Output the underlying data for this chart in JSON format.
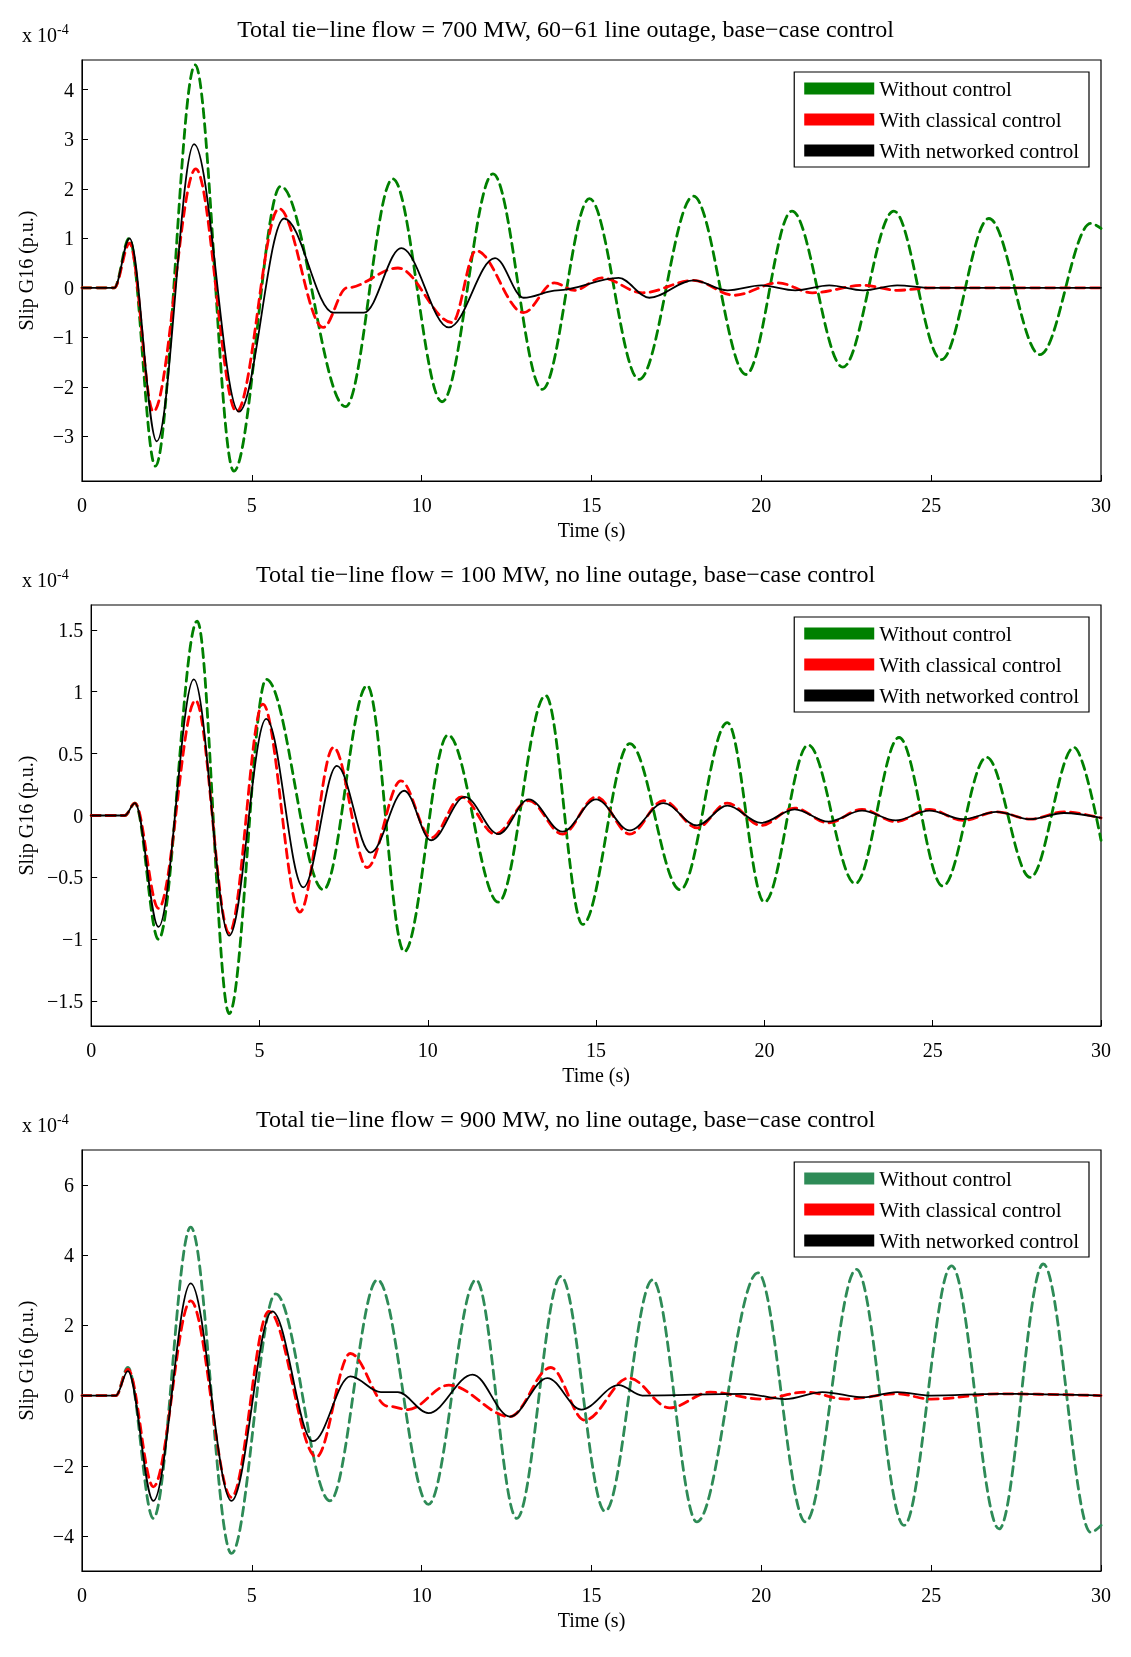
{
  "chart_data": [
    {
      "type": "line",
      "title": "Total tie−line flow = 700 MW, 60−61 line outage, base−case control",
      "xlabel": "Time (s)",
      "ylabel": "Slip G16 (p.u.)",
      "annotations": [
        "x 10$^{-4}$"
      ],
      "xlim": [
        0,
        30
      ],
      "xticks": [
        0,
        5,
        10,
        15,
        20,
        25,
        30
      ],
      "ylim": [
        -3.9,
        4.6
      ],
      "yticks": [
        -3,
        -2,
        -1,
        0,
        1,
        2,
        3,
        4
      ],
      "legend": "top right",
      "series": [
        {
          "name": "Without control",
          "color": "#008000",
          "line_style": "dashed",
          "x": [
            0,
            0.95,
            1.39,
            2.16,
            3.33,
            4.47,
            5.85,
            7.76,
            9.15,
            10.6,
            12.1,
            13.55,
            14.94,
            16.4,
            18.0,
            19.55,
            20.9,
            22.4,
            23.9,
            25.3,
            26.7,
            28.2,
            29.7,
            30
          ],
          "values": [
            0,
            0,
            1,
            -3.6,
            4.5,
            -3.7,
            2.05,
            -2.4,
            2.2,
            -2.3,
            2.3,
            -2.05,
            1.8,
            -1.85,
            1.85,
            -1.75,
            1.55,
            -1.6,
            1.55,
            -1.45,
            1.4,
            -1.35,
            1.3,
            1.2
          ]
        },
        {
          "name": "With classical control",
          "color": "#ff0000",
          "line_style": "dashed",
          "x": [
            0,
            0.95,
            1.4,
            2.1,
            3.35,
            4.55,
            5.8,
            7.1,
            7.8,
            9.3,
            10.9,
            11.6,
            13.0,
            13.9,
            14.5,
            15.3,
            16.5,
            18.0,
            19.2,
            20.5,
            21.5,
            23.0,
            24.0,
            25.0,
            30
          ],
          "values": [
            0,
            0,
            0.9,
            -2.5,
            2.4,
            -2.5,
            1.6,
            -0.8,
            0,
            0.4,
            -0.7,
            0.75,
            -0.5,
            0.1,
            -0.05,
            0.2,
            -0.1,
            0.15,
            -0.15,
            0.1,
            -0.1,
            0.05,
            -0.05,
            0,
            0
          ]
        },
        {
          "name": "With networked control",
          "color": "#000000",
          "line_style": "solid",
          "x": [
            0,
            0.95,
            1.4,
            2.2,
            3.3,
            4.62,
            5.95,
            7.4,
            8.3,
            9.4,
            10.8,
            12.16,
            13.0,
            14.0,
            15.8,
            16.7,
            18.0,
            19.0,
            20.0,
            21.0,
            22.0,
            23.0,
            24.0,
            25.0,
            30
          ],
          "values": [
            0,
            0,
            1,
            -3.1,
            2.9,
            -2.5,
            1.4,
            -0.5,
            -0.5,
            0.8,
            -0.8,
            0.6,
            -0.2,
            -0.05,
            0.2,
            -0.2,
            0.15,
            -0.05,
            0.05,
            -0.05,
            0.05,
            -0.05,
            0.05,
            0,
            0
          ]
        }
      ]
    },
    {
      "type": "line",
      "title": "Total tie−line flow = 100 MW, no line outage, base−case control",
      "xlabel": "Time (s)",
      "ylabel": "Slip G16 (p.u.)",
      "annotations": [
        "x 10$^{-4}$"
      ],
      "xlim": [
        0,
        30
      ],
      "xticks": [
        0,
        5,
        10,
        15,
        20,
        25,
        30
      ],
      "ylim": [
        -1.7,
        1.7
      ],
      "yticks": [
        -1.5,
        -1,
        -0.5,
        0,
        0.5,
        1,
        1.5
      ],
      "legend": "top right",
      "series": [
        {
          "name": "Without control",
          "color": "#008000",
          "line_style": "dashed",
          "x": [
            0,
            1.0,
            1.3,
            2.0,
            3.15,
            4.1,
            5.2,
            6.9,
            8.2,
            9.3,
            10.6,
            12.1,
            13.5,
            14.6,
            16.0,
            17.5,
            18.9,
            20.0,
            21.3,
            22.7,
            24.0,
            25.3,
            26.6,
            27.9,
            29.2,
            30
          ],
          "values": [
            0,
            0,
            0.1,
            -1.0,
            1.57,
            -1.6,
            1.1,
            -0.6,
            1.05,
            -1.1,
            0.65,
            -0.7,
            0.97,
            -0.88,
            0.58,
            -0.6,
            0.75,
            -0.7,
            0.57,
            -0.55,
            0.63,
            -0.57,
            0.47,
            -0.5,
            0.55,
            -0.2
          ]
        },
        {
          "name": "With classical control",
          "color": "#ff0000",
          "line_style": "dashed",
          "x": [
            0,
            1.0,
            1.3,
            2.0,
            3.1,
            4.1,
            5.1,
            6.2,
            7.2,
            8.2,
            9.2,
            10.1,
            11.0,
            12.0,
            13.0,
            14.0,
            15.0,
            16.0,
            17.0,
            18.0,
            18.9,
            19.9,
            20.9,
            21.9,
            22.9,
            23.9,
            24.9,
            25.9,
            26.9,
            27.9,
            28.9,
            30
          ],
          "values": [
            0,
            0,
            0.1,
            -0.75,
            0.93,
            -0.95,
            0.9,
            -0.78,
            0.55,
            -0.42,
            0.28,
            -0.18,
            0.15,
            -0.15,
            0.12,
            -0.15,
            0.15,
            -0.15,
            0.12,
            -0.1,
            0.1,
            -0.08,
            0.06,
            -0.06,
            0.05,
            -0.05,
            0.05,
            -0.04,
            0.03,
            -0.03,
            0.03,
            -0.02
          ]
        },
        {
          "name": "With networked control",
          "color": "#000000",
          "line_style": "solid",
          "x": [
            0,
            1.0,
            1.3,
            2.0,
            3.05,
            4.1,
            5.2,
            6.3,
            7.3,
            8.3,
            9.3,
            10.1,
            11.1,
            12.1,
            13.0,
            14.0,
            15.0,
            16.0,
            17.0,
            18.0,
            18.9,
            19.9,
            20.9,
            21.9,
            22.9,
            23.9,
            24.9,
            25.9,
            26.9,
            27.9,
            28.9,
            30
          ],
          "values": [
            0,
            0,
            0.1,
            -0.9,
            1.1,
            -0.97,
            0.78,
            -0.58,
            0.4,
            -0.3,
            0.2,
            -0.2,
            0.15,
            -0.15,
            0.13,
            -0.13,
            0.13,
            -0.12,
            0.1,
            -0.08,
            0.08,
            -0.06,
            0.05,
            -0.05,
            0.04,
            -0.04,
            0.04,
            -0.03,
            0.03,
            -0.03,
            0.02,
            -0.02
          ]
        }
      ]
    },
    {
      "type": "line",
      "title": "Total tie−line flow = 900 MW, no line outage, base−case control",
      "xlabel": "Time (s)",
      "ylabel": "Slip G16 (p.u.)",
      "annotations": [
        "x 10$^{-4}$"
      ],
      "xlim": [
        0,
        30
      ],
      "xticks": [
        0,
        5,
        10,
        15,
        20,
        25,
        30
      ],
      "ylim": [
        -5,
        7
      ],
      "yticks": [
        -4,
        -2,
        0,
        2,
        4,
        6
      ],
      "legend": "top right",
      "series": [
        {
          "name": "Without control",
          "color": "#2e8b57",
          "line_style": "dashed",
          "x": [
            0,
            1.0,
            1.35,
            2.1,
            3.2,
            4.4,
            5.7,
            7.3,
            8.7,
            10.2,
            11.6,
            12.8,
            14.1,
            15.4,
            16.8,
            18.1,
            19.9,
            21.3,
            22.8,
            24.2,
            25.6,
            27.0,
            28.3,
            29.7,
            30
          ],
          "values": [
            0,
            0,
            0.8,
            -3.5,
            4.8,
            -4.5,
            2.9,
            -3.0,
            3.3,
            -3.1,
            3.3,
            -3.5,
            3.4,
            -3.3,
            3.3,
            -3.6,
            3.5,
            -3.6,
            3.6,
            -3.7,
            3.7,
            -3.8,
            3.75,
            -3.9,
            -3.7
          ]
        },
        {
          "name": "With classical control",
          "color": "#ff0000",
          "line_style": "dashed",
          "x": [
            0,
            1.0,
            1.35,
            2.1,
            3.2,
            4.4,
            5.5,
            6.9,
            7.9,
            9.0,
            9.6,
            10.8,
            12.6,
            13.8,
            14.8,
            16.1,
            17.3,
            18.5,
            20.0,
            21.3,
            22.5,
            24.0,
            25.0,
            27.0,
            30
          ],
          "values": [
            0,
            0,
            0.75,
            -2.6,
            2.7,
            -2.9,
            2.4,
            -1.75,
            1.2,
            -0.3,
            -0.4,
            0.3,
            -0.6,
            0.8,
            -0.7,
            0.5,
            -0.35,
            0.1,
            -0.1,
            0.1,
            -0.1,
            0.05,
            -0.1,
            0.05,
            0
          ]
        },
        {
          "name": "With networked control",
          "color": "#000000",
          "line_style": "solid",
          "x": [
            0,
            1.0,
            1.35,
            2.1,
            3.2,
            4.4,
            5.6,
            6.8,
            7.9,
            8.8,
            9.3,
            10.2,
            11.5,
            12.6,
            13.7,
            14.7,
            15.8,
            16.5,
            19.5,
            20.7,
            21.8,
            23.0,
            24.0,
            25.0,
            27.0,
            30
          ],
          "values": [
            0,
            0,
            0.7,
            -3.0,
            3.2,
            -3.0,
            2.4,
            -1.3,
            0.55,
            0.1,
            0.1,
            -0.5,
            0.6,
            -0.6,
            0.5,
            -0.4,
            0.3,
            0,
            0.05,
            -0.1,
            0.1,
            -0.05,
            0.1,
            0,
            0.05,
            0
          ]
        }
      ]
    }
  ]
}
